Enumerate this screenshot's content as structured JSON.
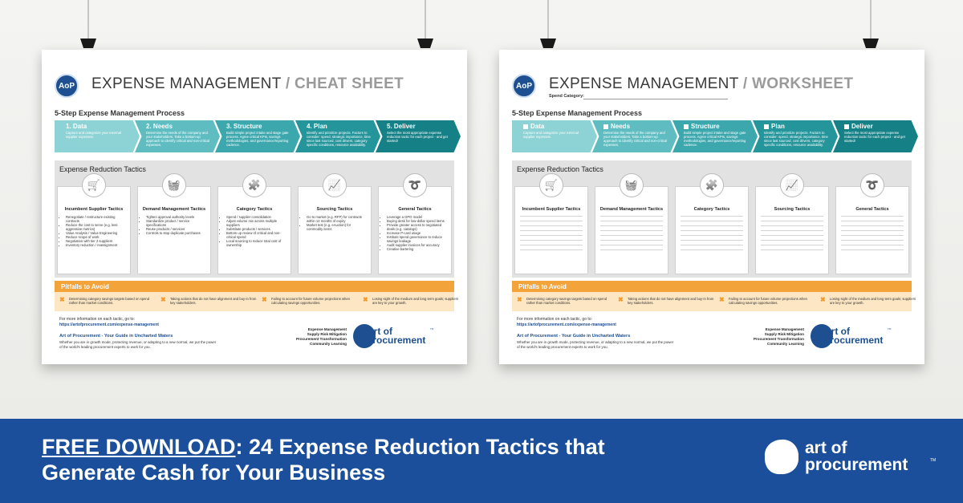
{
  "shared": {
    "process_title": "5-Step Expense Management Process",
    "steps": [
      {
        "name": "1. Data",
        "check_name": "Data",
        "text": "Capture and categorize your external supplier expenses."
      },
      {
        "name": "2. Needs",
        "check_name": "Needs",
        "text": "Determine the needs of the company and your stakeholders. Take a bottom-up approach to identify critical and non-critical expenses."
      },
      {
        "name": "3. Structure",
        "check_name": "Structure",
        "text": "Build simple project intake and stage gate process. Agree critical KPIs, savings methodologies, and governance/reporting cadence."
      },
      {
        "name": "4. Plan",
        "check_name": "Plan",
        "text": "Identify and prioritize projects. Factors to consider: spend, strategic importance, time since last sourced, cost drivers, category specific conditions, resource availability."
      },
      {
        "name": "5. Deliver",
        "check_name": "Deliver",
        "text": "Select the most appropriate expense reduction tactic for each project - and get started!"
      }
    ],
    "tactics_title": "Expense Reduction Tactics",
    "tactics": [
      {
        "name": "Incumbent Supplier Tactics",
        "bullets": [
          "Renegotiate / restructure existing contracts",
          "Reduce the cost to serve (e.g. less aggressive metrics)",
          "Value Analysis / Value Engineering",
          "Reduce scope of work",
          "Negotiation with tier 2 suppliers",
          "Inventory reduction / reassignment"
        ]
      },
      {
        "name": "Demand Management Tactics",
        "bullets": [
          "Tighten approval authority levels",
          "Standardize product / service specifications",
          "Reuse products / services",
          "Controls to stop duplicate purchases"
        ]
      },
      {
        "name": "Category Tactics",
        "bullets": [
          "Spend / supplier consolidation",
          "Adjust volume mix across multiple suppliers",
          "Substitute products / services",
          "Bottom up review of critical and non-critical spend",
          "Local sourcing to reduce total cost of ownership"
        ]
      },
      {
        "name": "Sourcing Tactics",
        "bullets": [
          "Go to market (e.g. RFP) for contracts within 12 months of expiry",
          "Market test (e.g. eAuction) for commodity items"
        ]
      },
      {
        "name": "General Tactics",
        "bullets": [
          "Leverage a GPO model",
          "Buying desk for low-dollar spend items",
          "Provide greater access to negotiated deals (e.g. catalogs)",
          "Increase P-card usage",
          "Institute spend governance to reduce savings leakage",
          "Audit supplier invoices for accuracy",
          "Creative bartering"
        ]
      }
    ],
    "pitfalls_title": "Pitfalls to Avoid",
    "pitfalls": [
      "Determining category savings targets based on spend rather than market conditions.",
      "Taking actions that do not have alignment and buy-in from key stakeholders.",
      "Failing to account for future volume projections when calculating savings opportunities.",
      "Losing sight of the medium and long term goals; suppliers are key to your growth."
    ],
    "footer": {
      "more_info": "For more information on each tactic, go to:",
      "url": "https://artofprocurement.com/expense-management",
      "tagline": "Art of Procurement - Your Guide in Uncharted Waters",
      "body": "Whether you are in growth mode, protecting revenue, or adapting to a new normal, we put the power of the world's leading procurement experts to work for you.",
      "services": [
        "Expense Management",
        "Supply Risk Mitigation",
        "Procurement Transformation",
        "Community Learning"
      ]
    },
    "logo_mark": "AoP",
    "brand": {
      "line1": "art of",
      "line2": "procurement",
      "tm": "TM"
    }
  },
  "posters": [
    {
      "title": "EXPENSE MANAGEMENT",
      "subtitle": "/ CHEAT SHEET"
    },
    {
      "title": "EXPENSE MANAGEMENT",
      "subtitle": "/ WORKSHEET",
      "spend_label": "Spend Category:"
    }
  ],
  "banner": {
    "highlight": "FREE DOWNLOAD",
    "text": ": 24 Expense Reduction Tactics that Generate Cash for Your Business"
  }
}
